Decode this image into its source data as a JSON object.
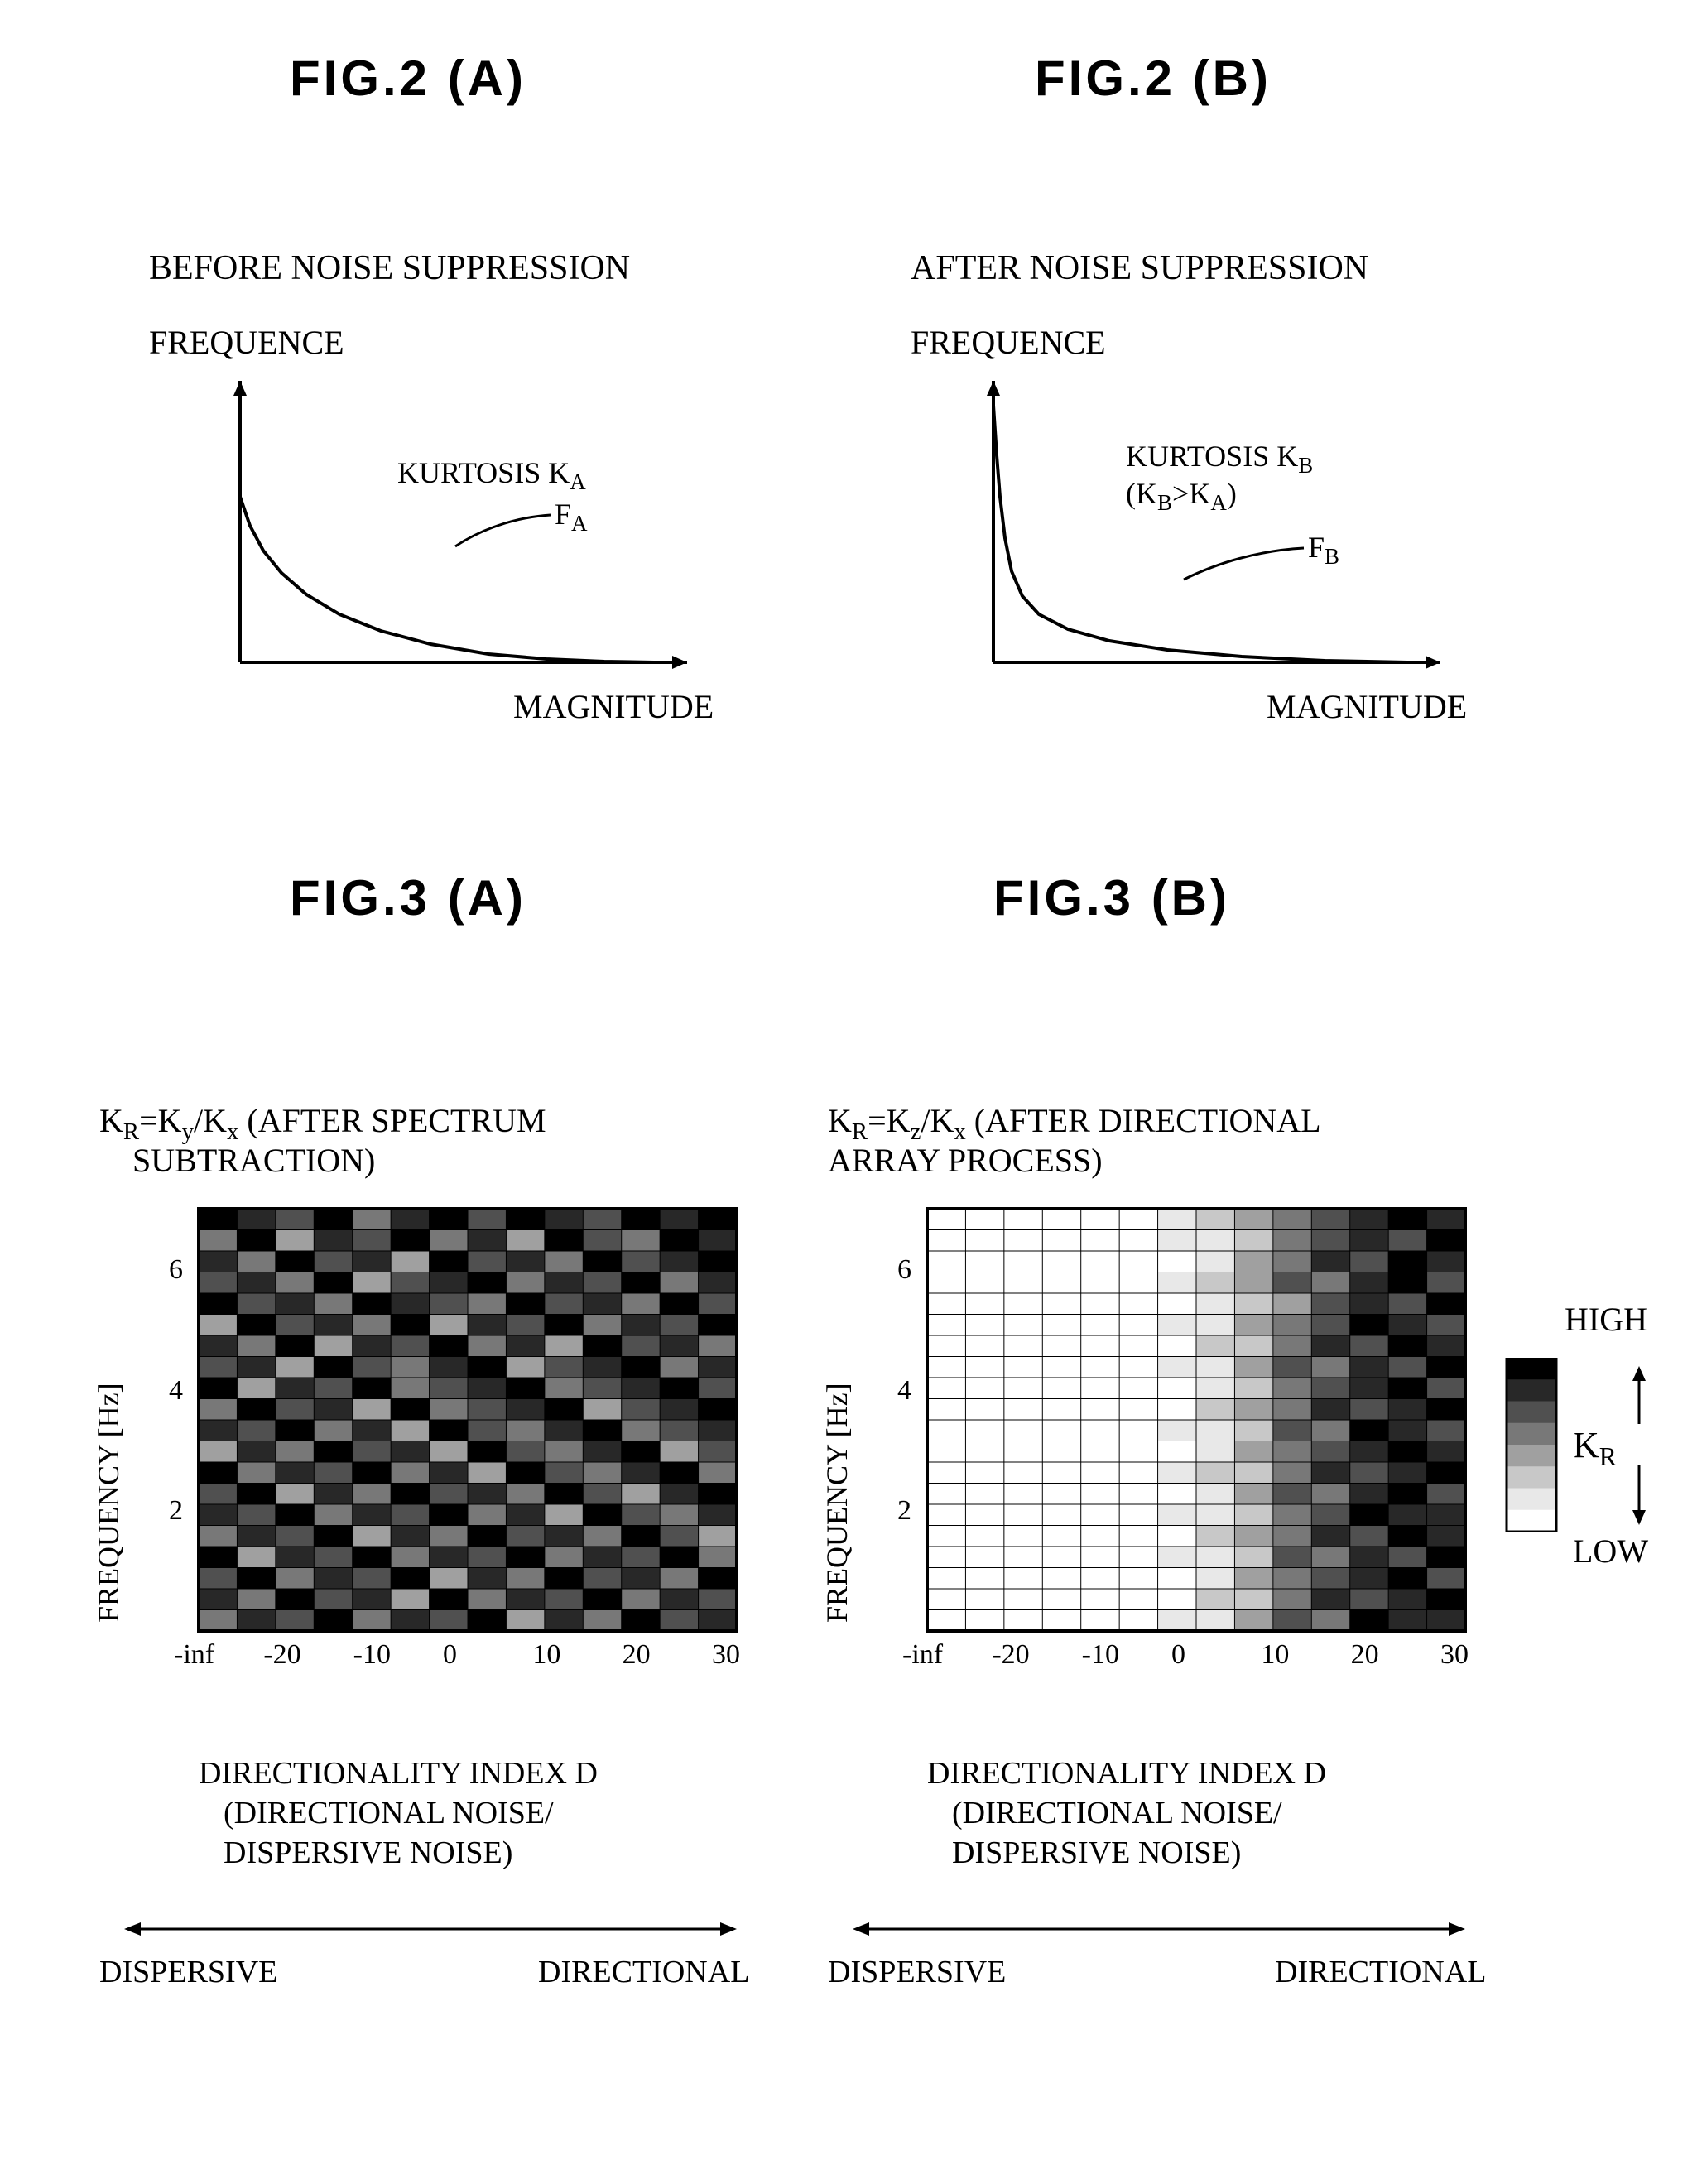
{
  "titles": {
    "fig2a": "FIG.2 (A)",
    "fig2b": "FIG.2 (B)",
    "fig3a": "FIG.3 (A)",
    "fig3b": "FIG.3 (B)"
  },
  "fig2a": {
    "title": "BEFORE NOISE SUPPRESSION",
    "ylabel": "FREQUENCE",
    "xlabel": "MAGNITUDE",
    "kurtosis_label": "KURTOSIS K",
    "kurtosis_sub": "A",
    "curve_label": "F",
    "curve_sub": "A",
    "curve": {
      "type": "line",
      "color": "#000000",
      "width": 4,
      "bg": "#ffffff",
      "points": [
        [
          0,
          200
        ],
        [
          12,
          165
        ],
        [
          28,
          135
        ],
        [
          50,
          108
        ],
        [
          80,
          82
        ],
        [
          120,
          58
        ],
        [
          170,
          38
        ],
        [
          230,
          22
        ],
        [
          300,
          10
        ],
        [
          370,
          4
        ],
        [
          440,
          1
        ],
        [
          500,
          0
        ]
      ]
    },
    "axes": {
      "xlen": 520,
      "ylen": 320,
      "arrow": true
    }
  },
  "fig2b": {
    "title": "AFTER NOISE SUPPRESSION",
    "ylabel": "FREQUENCE",
    "xlabel": "MAGNITUDE",
    "kurtosis_label": "KURTOSIS K",
    "kurtosis_sub": "B",
    "kurtosis_extra": "(K",
    "kurtosis_extra_sub1": "B",
    "kurtosis_extra_mid": ">K",
    "kurtosis_extra_sub2": "A",
    "kurtosis_extra_end": ")",
    "curve_label": "F",
    "curve_sub": "B",
    "curve": {
      "type": "line",
      "color": "#000000",
      "width": 4,
      "bg": "#ffffff",
      "points": [
        [
          0,
          310
        ],
        [
          4,
          250
        ],
        [
          8,
          200
        ],
        [
          14,
          150
        ],
        [
          22,
          110
        ],
        [
          35,
          80
        ],
        [
          55,
          58
        ],
        [
          90,
          40
        ],
        [
          140,
          26
        ],
        [
          210,
          15
        ],
        [
          300,
          7
        ],
        [
          400,
          2
        ],
        [
          500,
          0
        ]
      ]
    },
    "axes": {
      "xlen": 520,
      "ylen": 340,
      "arrow": true
    }
  },
  "fig3": {
    "title_a_line1": "K",
    "title_a_sub1": "R",
    "title_a_mid": "=K",
    "title_a_sub2": "y",
    "title_a_slash": "/K",
    "title_a_sub3": "x",
    "title_a_rest": "(AFTER SPECTRUM",
    "title_a_line2": "SUBTRACTION)",
    "title_b_line1": "K",
    "title_b_sub1": "R",
    "title_b_mid": "=K",
    "title_b_sub2": "z",
    "title_b_slash": "/K",
    "title_b_sub3": "x",
    "title_b_rest": "(AFTER DIRECTIONAL",
    "title_b_line2": "ARRAY PROCESS)",
    "ylabel": "FREQUENCY [Hz]",
    "xlabel_line1": "DIRECTIONALITY INDEX D",
    "xlabel_line2": "(DIRECTIONAL NOISE/",
    "xlabel_line3": "DISPERSIVE NOISE)",
    "dispersive": "DISPERSIVE",
    "directional": "DIRECTIONAL",
    "xticks": [
      "-inf",
      "-20",
      "-10",
      "0",
      "10",
      "20",
      "30"
    ],
    "yticks": [
      "2",
      "4",
      "6"
    ],
    "legend_high": "HIGH",
    "legend_low": "LOW",
    "legend_mid": "K",
    "legend_mid_sub": "R",
    "palette": [
      "#ffffff",
      "#e8e8e8",
      "#c8c8c8",
      "#a0a0a0",
      "#787878",
      "#505050",
      "#282828",
      "#000000"
    ],
    "rows": 20,
    "cols": 14,
    "heatmap_a": {
      "type": "heatmap",
      "values": [
        [
          7,
          6,
          5,
          7,
          4,
          6,
          7,
          5,
          7,
          6,
          5,
          7,
          6,
          7
        ],
        [
          4,
          7,
          3,
          6,
          5,
          7,
          4,
          6,
          3,
          7,
          5,
          4,
          7,
          6
        ],
        [
          6,
          4,
          7,
          5,
          6,
          3,
          7,
          5,
          6,
          4,
          7,
          5,
          6,
          7
        ],
        [
          5,
          6,
          4,
          7,
          3,
          5,
          6,
          7,
          4,
          6,
          5,
          7,
          4,
          6
        ],
        [
          7,
          5,
          6,
          4,
          7,
          6,
          5,
          4,
          7,
          5,
          6,
          4,
          7,
          5
        ],
        [
          3,
          7,
          5,
          6,
          4,
          7,
          3,
          6,
          5,
          7,
          4,
          6,
          5,
          7
        ],
        [
          6,
          4,
          7,
          3,
          6,
          5,
          7,
          4,
          6,
          3,
          7,
          5,
          6,
          4
        ],
        [
          5,
          6,
          3,
          7,
          5,
          4,
          6,
          7,
          3,
          5,
          6,
          7,
          4,
          6
        ],
        [
          7,
          3,
          6,
          5,
          7,
          4,
          5,
          6,
          7,
          4,
          5,
          6,
          7,
          5
        ],
        [
          4,
          7,
          5,
          6,
          3,
          7,
          4,
          5,
          6,
          7,
          3,
          5,
          6,
          7
        ],
        [
          6,
          5,
          7,
          4,
          6,
          3,
          7,
          5,
          4,
          6,
          7,
          4,
          5,
          6
        ],
        [
          3,
          6,
          4,
          7,
          5,
          6,
          3,
          7,
          5,
          4,
          6,
          7,
          3,
          5
        ],
        [
          7,
          4,
          6,
          5,
          7,
          4,
          6,
          3,
          7,
          5,
          4,
          6,
          7,
          4
        ],
        [
          5,
          7,
          3,
          6,
          4,
          7,
          5,
          6,
          4,
          7,
          5,
          3,
          6,
          7
        ],
        [
          6,
          5,
          7,
          4,
          6,
          5,
          7,
          4,
          6,
          3,
          7,
          5,
          4,
          6
        ],
        [
          4,
          6,
          5,
          7,
          3,
          6,
          4,
          7,
          5,
          6,
          4,
          7,
          5,
          3
        ],
        [
          7,
          3,
          6,
          5,
          7,
          4,
          6,
          5,
          7,
          4,
          6,
          5,
          7,
          4
        ],
        [
          5,
          7,
          4,
          6,
          5,
          7,
          3,
          6,
          4,
          7,
          5,
          6,
          4,
          7
        ],
        [
          6,
          4,
          7,
          5,
          6,
          3,
          7,
          4,
          6,
          5,
          7,
          4,
          6,
          5
        ],
        [
          4,
          6,
          5,
          7,
          4,
          6,
          5,
          7,
          3,
          6,
          4,
          7,
          5,
          6
        ]
      ]
    },
    "heatmap_b": {
      "type": "heatmap",
      "values": [
        [
          0,
          0,
          0,
          0,
          0,
          0,
          1,
          2,
          3,
          4,
          5,
          6,
          7,
          6
        ],
        [
          0,
          0,
          0,
          0,
          0,
          0,
          1,
          1,
          2,
          4,
          5,
          6,
          5,
          7
        ],
        [
          0,
          0,
          0,
          0,
          0,
          0,
          0,
          1,
          3,
          4,
          6,
          5,
          7,
          6
        ],
        [
          0,
          0,
          0,
          0,
          0,
          0,
          1,
          2,
          3,
          5,
          4,
          6,
          7,
          5
        ],
        [
          0,
          0,
          0,
          0,
          0,
          0,
          0,
          1,
          2,
          3,
          5,
          6,
          5,
          7
        ],
        [
          0,
          0,
          0,
          0,
          0,
          0,
          1,
          1,
          3,
          4,
          5,
          7,
          6,
          5
        ],
        [
          0,
          0,
          0,
          0,
          0,
          0,
          0,
          2,
          2,
          4,
          6,
          5,
          7,
          6
        ],
        [
          0,
          0,
          0,
          0,
          0,
          0,
          1,
          1,
          3,
          5,
          4,
          6,
          5,
          7
        ],
        [
          0,
          0,
          0,
          0,
          0,
          0,
          0,
          1,
          2,
          4,
          5,
          6,
          7,
          5
        ],
        [
          0,
          0,
          0,
          0,
          0,
          0,
          0,
          2,
          3,
          4,
          6,
          5,
          6,
          7
        ],
        [
          0,
          0,
          0,
          0,
          0,
          0,
          1,
          1,
          2,
          5,
          4,
          7,
          6,
          5
        ],
        [
          0,
          0,
          0,
          0,
          0,
          0,
          0,
          1,
          3,
          4,
          5,
          6,
          7,
          6
        ],
        [
          0,
          0,
          0,
          0,
          0,
          0,
          1,
          2,
          2,
          4,
          6,
          5,
          6,
          7
        ],
        [
          0,
          0,
          0,
          0,
          0,
          0,
          0,
          1,
          3,
          5,
          4,
          6,
          7,
          5
        ],
        [
          0,
          0,
          0,
          0,
          0,
          0,
          1,
          1,
          2,
          4,
          5,
          7,
          6,
          6
        ],
        [
          0,
          0,
          0,
          0,
          0,
          0,
          0,
          2,
          3,
          4,
          6,
          5,
          7,
          6
        ],
        [
          0,
          0,
          0,
          0,
          0,
          0,
          1,
          1,
          2,
          5,
          4,
          6,
          5,
          7
        ],
        [
          0,
          0,
          0,
          0,
          0,
          0,
          0,
          1,
          3,
          4,
          5,
          6,
          7,
          5
        ],
        [
          0,
          0,
          0,
          0,
          0,
          0,
          0,
          2,
          2,
          4,
          6,
          5,
          6,
          7
        ],
        [
          0,
          0,
          0,
          0,
          0,
          0,
          1,
          1,
          3,
          5,
          4,
          7,
          6,
          6
        ]
      ]
    }
  },
  "layout": {
    "title_fontsize": 60,
    "subtitle_fontsize": 42,
    "label_fontsize": 40
  }
}
